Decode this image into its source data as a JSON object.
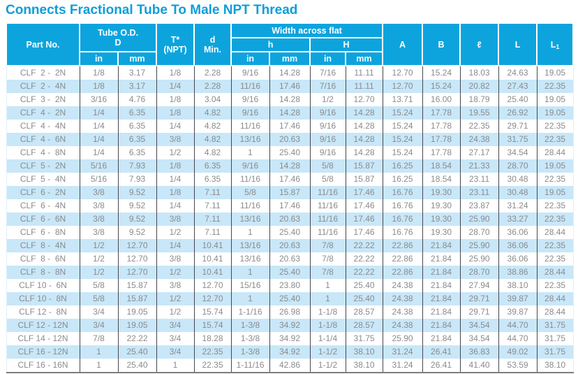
{
  "title": "Connects Fractional Tube To Male NPT Thread",
  "colors": {
    "accent_blue": "#0da4de",
    "title_blue": "#0d9ed9",
    "row_alt_blue": "#c8e7f8",
    "data_text_gray": "#8b8b8d"
  },
  "header": {
    "part_no": "Part No.",
    "tube_od_line1": "Tube O.D.",
    "tube_od_line2": "D",
    "t_line1": "T*",
    "t_line2": "(NPT)",
    "d_line1": "d",
    "d_line2": "Min.",
    "width_across_flat": "Width across flat",
    "h_lower": "h",
    "h_upper": "H",
    "in": "in",
    "mm": "mm",
    "col_a": "A",
    "col_b": "B",
    "col_l_script": "ℓ",
    "col_l": "L",
    "col_l1_base": "L",
    "col_l1_sub": "1"
  },
  "rows": [
    [
      "CLF  2 -  2N",
      "1/8",
      "3.17",
      "1/8",
      "2.28",
      "9/16",
      "14.28",
      "7/16",
      "11.11",
      "12.70",
      "15.24",
      "18.03",
      "24.63",
      "19.05"
    ],
    [
      "CLF  2 -  4N",
      "1/8",
      "3.17",
      "1/4",
      "2.28",
      "11/16",
      "17.46",
      "7/16",
      "11.11",
      "12.70",
      "15.24",
      "20.82",
      "27.43",
      "22.35"
    ],
    [
      "CLF  3 -  2N",
      "3/16",
      "4.76",
      "1/8",
      "3.04",
      "9/16",
      "14.28",
      "1/2",
      "12.70",
      "13.71",
      "16.00",
      "18.79",
      "25.40",
      "19.05"
    ],
    [
      "CLF  4 -  2N",
      "1/4",
      "6.35",
      "1/8",
      "4.82",
      "9/16",
      "14.28",
      "9/16",
      "14.28",
      "15.24",
      "17.78",
      "19.55",
      "26.92",
      "19.05"
    ],
    [
      "CLF  4 -  4N",
      "1/4",
      "6.35",
      "1/4",
      "4.82",
      "11/16",
      "17.46",
      "9/16",
      "14.28",
      "15.24",
      "17.78",
      "22.35",
      "29.71",
      "22.35"
    ],
    [
      "CLF  4 -  6N",
      "1/4",
      "6.35",
      "3/8",
      "4.82",
      "13/16",
      "20.63",
      "9/16",
      "14.28",
      "15.24",
      "17.78",
      "24.38",
      "31.75",
      "22.35"
    ],
    [
      "CLF  4 -  8N",
      "1/4",
      "6.35",
      "1/2",
      "4.82",
      "1",
      "25.40",
      "9/16",
      "14.28",
      "15.24",
      "17.78",
      "27.17",
      "34.54",
      "28.44"
    ],
    [
      "CLF  5 -  2N",
      "5/16",
      "7.93",
      "1/8",
      "6.35",
      "9/16",
      "14.28",
      "5/8",
      "15.87",
      "16.25",
      "18.54",
      "21.33",
      "28.70",
      "19.05"
    ],
    [
      "CLF  5 -  4N",
      "5/16",
      "7.93",
      "1/4",
      "6.35",
      "11/16",
      "17.46",
      "5/8",
      "15.87",
      "16.25",
      "18.54",
      "23.11",
      "30.48",
      "22.35"
    ],
    [
      "CLF  6 -  2N",
      "3/8",
      "9.52",
      "1/8",
      "7.11",
      "5/8",
      "15.87",
      "11/16",
      "17.46",
      "16.76",
      "19.30",
      "23.11",
      "30.48",
      "19.05"
    ],
    [
      "CLF  6 -  4N",
      "3/8",
      "9.52",
      "1/4",
      "7.11",
      "11/16",
      "17.46",
      "11/16",
      "17.46",
      "16.76",
      "19.30",
      "23.87",
      "31.24",
      "22.35"
    ],
    [
      "CLF  6 -  6N",
      "3/8",
      "9.52",
      "3/8",
      "7.11",
      "13/16",
      "20.63",
      "11/16",
      "17.46",
      "16.76",
      "19.30",
      "25.90",
      "33.27",
      "22.35"
    ],
    [
      "CLF  6 -  8N",
      "3/8",
      "9.52",
      "1/2",
      "7.11",
      "1",
      "25.40",
      "11/16",
      "17.46",
      "16.76",
      "19.30",
      "28.70",
      "36.06",
      "28.44"
    ],
    [
      "CLF  8 -  4N",
      "1/2",
      "12.70",
      "1/4",
      "10.41",
      "13/16",
      "20.63",
      "7/8",
      "22.22",
      "22.86",
      "21.84",
      "25.90",
      "36.06",
      "22.35"
    ],
    [
      "CLF  8 -  6N",
      "1/2",
      "12.70",
      "3/8",
      "10.41",
      "13/16",
      "20.63",
      "7/8",
      "22.22",
      "22.86",
      "21.84",
      "25.90",
      "36.06",
      "22.35"
    ],
    [
      "CLF  8 -  8N",
      "1/2",
      "12.70",
      "1/2",
      "10.41",
      "1",
      "25.40",
      "7/8",
      "22.22",
      "22.86",
      "21.84",
      "28.70",
      "38.86",
      "28.44"
    ],
    [
      "CLF 10 -  6N",
      "5/8",
      "15.87",
      "3/8",
      "12.70",
      "15/16",
      "23.80",
      "1",
      "25.40",
      "24.38",
      "21.84",
      "27.94",
      "38.10",
      "22.35"
    ],
    [
      "CLF 10 -  8N",
      "5/8",
      "15.87",
      "1/2",
      "12.70",
      "1",
      "25.40",
      "1",
      "25.40",
      "24.38",
      "21.84",
      "29.71",
      "39.87",
      "28.44"
    ],
    [
      "CLF 12 -  8N",
      "3/4",
      "19.05",
      "1/2",
      "15.74",
      "1-1/16",
      "26.98",
      "1-1/8",
      "28.57",
      "24.38",
      "21.84",
      "29.71",
      "39.87",
      "28.44"
    ],
    [
      "CLF 12 - 12N",
      "3/4",
      "19.05",
      "3/4",
      "15.74",
      "1-3/8",
      "34.92",
      "1-1/8",
      "28.57",
      "24.38",
      "21.84",
      "34.54",
      "44.70",
      "31.75"
    ],
    [
      "CLF 14 - 12N",
      "7/8",
      "22.22",
      "3/4",
      "18.28",
      "1-3/8",
      "34.92",
      "1-1/4",
      "31.75",
      "25.90",
      "21.84",
      "34.54",
      "44.70",
      "31.75"
    ],
    [
      "CLF 16 - 12N",
      "1",
      "25.40",
      "3/4",
      "22.35",
      "1-3/8",
      "34.92",
      "1-1/2",
      "38.10",
      "31.24",
      "26.41",
      "36.83",
      "49.02",
      "31.75"
    ],
    [
      "CLF 16 - 16N",
      "1",
      "25.40",
      "1",
      "22.35",
      "1-11/16",
      "42.86",
      "1-1/2",
      "38.10",
      "31.24",
      "26.41",
      "41.40",
      "53.59",
      "38.10"
    ]
  ]
}
